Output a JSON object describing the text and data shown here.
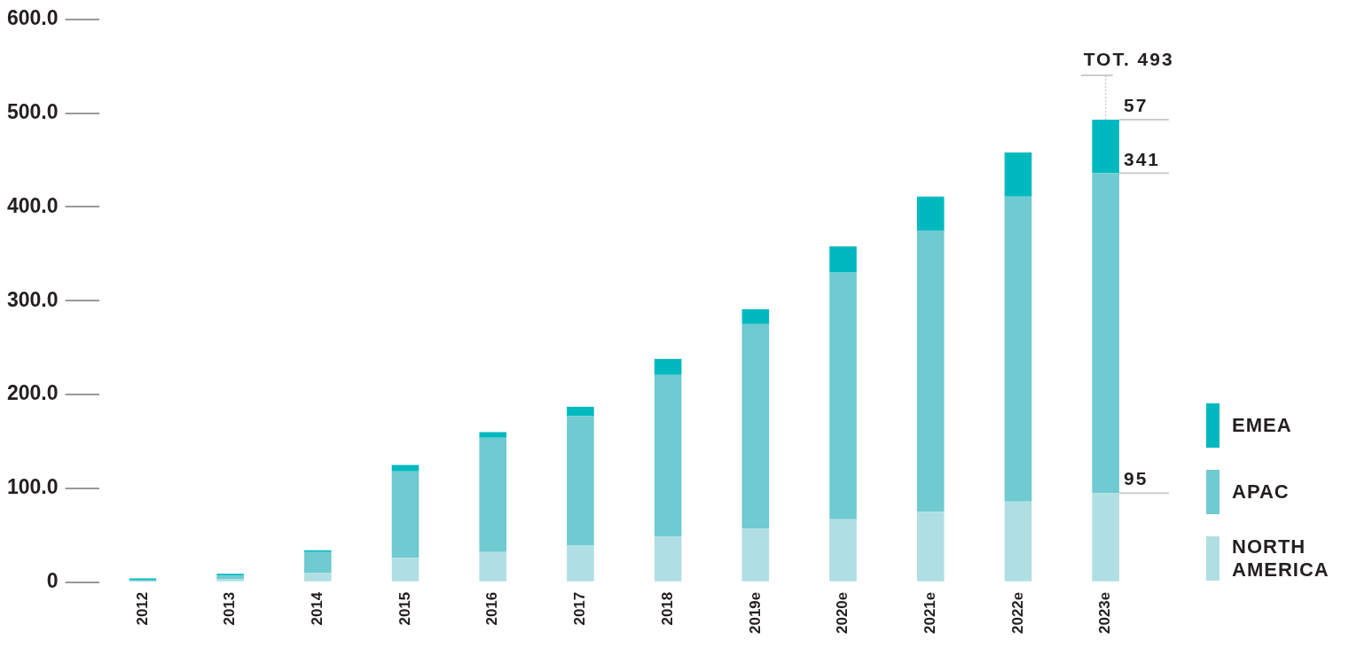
{
  "chart_data": {
    "type": "bar",
    "stacked": true,
    "categories": [
      "2012",
      "2013",
      "2014",
      "2015",
      "2016",
      "2017",
      "2018",
      "2019e",
      "2020e",
      "2021e",
      "2022e",
      "2023e"
    ],
    "series": [
      {
        "name": "NORTH AMERICA",
        "color": "#b0dfe3",
        "values": [
          1,
          3,
          10,
          26,
          32,
          39,
          49,
          57,
          67,
          75,
          86,
          95
        ],
        "value_labels": [
          null,
          null,
          null,
          null,
          null,
          null,
          null,
          null,
          null,
          null,
          null,
          "95"
        ]
      },
      {
        "name": "APAC",
        "color": "#6fcad1",
        "values": [
          1,
          4,
          22,
          92,
          122,
          138,
          172,
          218,
          263,
          300,
          325,
          341
        ],
        "value_labels": [
          null,
          null,
          null,
          null,
          null,
          null,
          null,
          null,
          null,
          null,
          null,
          "341"
        ]
      },
      {
        "name": "EMEA",
        "color": "#00b9bf",
        "values": [
          2,
          2,
          2,
          7,
          6,
          10,
          17,
          16,
          28,
          36,
          47,
          57
        ],
        "value_labels": [
          null,
          null,
          null,
          null,
          null,
          null,
          null,
          null,
          null,
          null,
          null,
          "57"
        ]
      }
    ],
    "totals": [
      null,
      null,
      null,
      null,
      null,
      null,
      null,
      null,
      null,
      null,
      null,
      "TOT. 493"
    ],
    "ylim": [
      0,
      600
    ],
    "yticks": [
      0,
      {
        "value": 100,
        "label": "100.0"
      },
      {
        "value": 200,
        "label": "200.0"
      },
      {
        "value": 300,
        "label": "300.0"
      },
      {
        "value": 400,
        "label": "400.0"
      },
      {
        "value": 500,
        "label": "500.0"
      },
      {
        "value": 600,
        "label": "600.0"
      }
    ],
    "grid": false,
    "legend": "right"
  }
}
